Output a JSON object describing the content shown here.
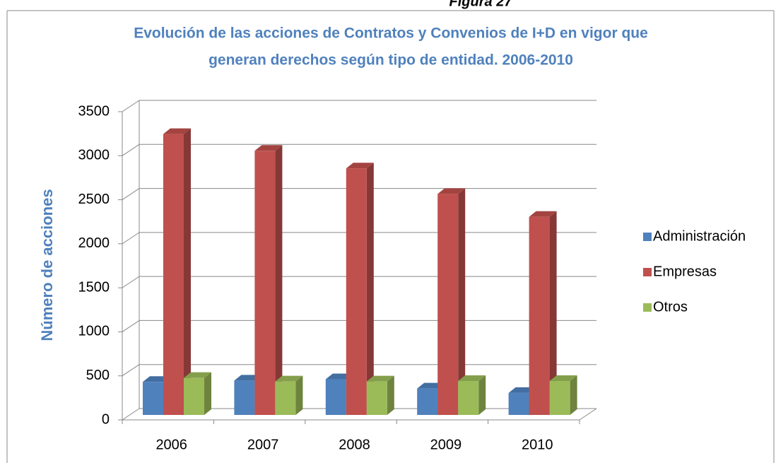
{
  "chart_data": {
    "type": "bar3d",
    "caption": "Figura 27",
    "title": [
      "Evolución de las acciones de Contratos y Convenios de I+D en vigor que",
      "generan derechos según tipo de entidad. 2006-2010"
    ],
    "y_label": "Número de acciones",
    "categories": [
      "2006",
      "2007",
      "2008",
      "2009",
      "2010"
    ],
    "series": [
      {
        "name": "Administración",
        "color": "#4f81bd",
        "values": [
          375,
          390,
          405,
          300,
          250
        ]
      },
      {
        "name": "Empresas",
        "color": "#c0504d",
        "values": [
          3190,
          3000,
          2800,
          2510,
          2250
        ]
      },
      {
        "name": "Otros",
        "color": "#9bbb59",
        "values": [
          420,
          380,
          380,
          385,
          385
        ]
      }
    ],
    "ylim": [
      0,
      3500
    ],
    "yticks": [
      0,
      500,
      1000,
      1500,
      2000,
      2500,
      3000,
      3500
    ],
    "grid": true,
    "legend": "right"
  }
}
